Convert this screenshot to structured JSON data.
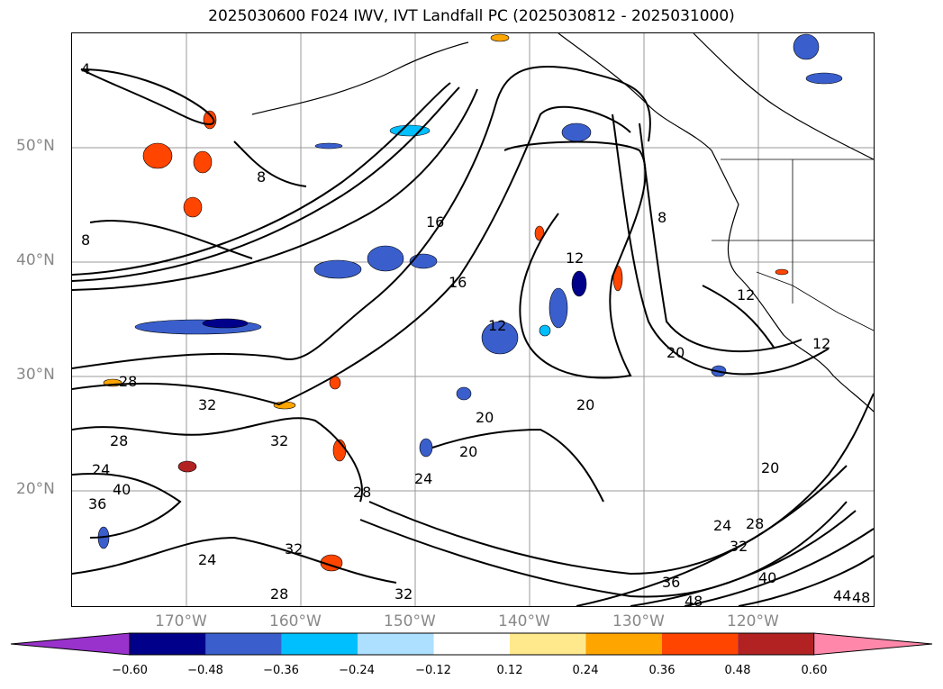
{
  "title": "2025030600 F024 IWV, IVT Landfall PC (2025030812 - 2025031000)",
  "lat_labels": [
    "50°N",
    "40°N",
    "30°N",
    "20°N"
  ],
  "lon_labels": [
    "170°W",
    "160°W",
    "150°W",
    "140°W",
    "130°W",
    "120°W"
  ],
  "colorbar": {
    "ticks": [
      "−0.60",
      "−0.48",
      "−0.36",
      "−0.24",
      "−0.12",
      "0.12",
      "0.24",
      "0.36",
      "0.48",
      "0.60"
    ],
    "colors": [
      "#9932CC",
      "#00008B",
      "#3A5FCD",
      "#00BFFF",
      "#ADDFFF",
      "#FFFFFF",
      "#FFE98C",
      "#FFA500",
      "#FF4500",
      "#B22222",
      "#FF88AA"
    ]
  },
  "contour_labels": [
    "4",
    "8",
    "8",
    "8",
    "12",
    "12",
    "12",
    "12",
    "16",
    "16",
    "20",
    "20",
    "20",
    "20",
    "20",
    "24",
    "24",
    "24",
    "24",
    "28",
    "28",
    "28",
    "28",
    "28",
    "32",
    "32",
    "32",
    "32",
    "32",
    "36",
    "36",
    "40",
    "40",
    "44",
    "48",
    "48"
  ]
}
